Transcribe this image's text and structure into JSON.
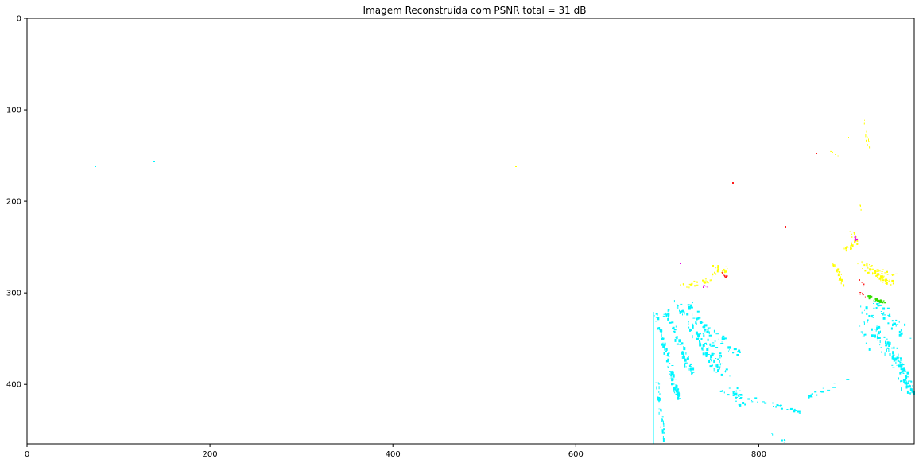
{
  "chart_data": {
    "type": "image",
    "title": "Imagem Reconstruída com PSNR total = 31 dB",
    "x_ticks": [
      {
        "value": 0,
        "label": "0"
      },
      {
        "value": 200,
        "label": "200"
      },
      {
        "value": 400,
        "label": "400"
      },
      {
        "value": 600,
        "label": "600"
      },
      {
        "value": 800,
        "label": "800"
      }
    ],
    "y_ticks": [
      {
        "value": 0,
        "label": "0"
      },
      {
        "value": 100,
        "label": "100"
      },
      {
        "value": 200,
        "label": "200"
      },
      {
        "value": 300,
        "label": "300"
      },
      {
        "value": 400,
        "label": "400"
      }
    ],
    "xlim": [
      0,
      970
    ],
    "ylim": [
      0,
      465
    ],
    "grid": false,
    "colors": {
      "cyan": "#00f5ff",
      "yellow": "#ffff00",
      "red": "#ff1a1a",
      "magenta": "#e600e6",
      "green": "#33dd00"
    }
  }
}
